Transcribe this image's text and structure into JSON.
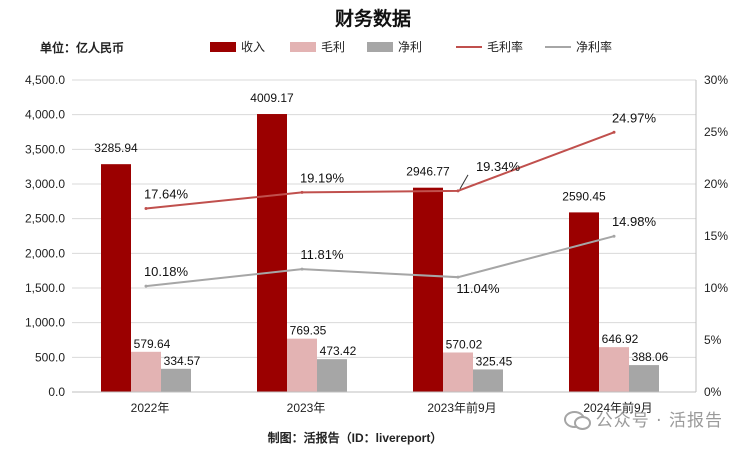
{
  "chart_data": {
    "type": "bar",
    "title": "财务数据",
    "unit_label": "单位：亿人民币",
    "footer": "制图：活报告（ID：livereport）",
    "categories": [
      "2022年",
      "2023年",
      "2023年前9月",
      "2024年前9月"
    ],
    "left_axis": {
      "ylim": [
        0,
        4500
      ],
      "ticks": [
        "0.0",
        "500.0",
        "1,000.0",
        "1,500.0",
        "2,000.0",
        "2,500.0",
        "3,000.0",
        "3,500.0",
        "4,000.0",
        "4,500.0"
      ]
    },
    "right_axis": {
      "ylim": [
        0,
        30
      ],
      "ticks": [
        "0%",
        "5%",
        "10%",
        "15%",
        "20%",
        "25%",
        "30%"
      ]
    },
    "grid": true,
    "legend_position": "top",
    "bar_series": [
      {
        "name": "收入",
        "color": "#9b0000",
        "values": [
          3285.94,
          4009.17,
          2946.77,
          2590.45
        ],
        "labels": [
          "3285.94",
          "4009.17",
          "2946.77",
          "2590.45"
        ]
      },
      {
        "name": "毛利",
        "color": "#e3b3b3",
        "values": [
          579.64,
          769.35,
          570.02,
          646.92
        ],
        "labels": [
          "579.64",
          "769.35",
          "570.02",
          "646.92"
        ]
      },
      {
        "name": "净利",
        "color": "#a6a6a6",
        "values": [
          334.57,
          473.42,
          325.45,
          388.06
        ],
        "labels": [
          "334.57",
          "473.42",
          "325.45",
          "388.06"
        ]
      }
    ],
    "line_series": [
      {
        "name": "毛利率",
        "color": "#c0504d",
        "values": [
          17.64,
          19.19,
          19.34,
          24.97
        ],
        "labels": [
          "17.64%",
          "19.19%",
          "19.34%",
          "24.97%"
        ]
      },
      {
        "name": "净利率",
        "color": "#a6a6a6",
        "values": [
          10.18,
          11.81,
          11.04,
          14.98
        ],
        "labels": [
          "10.18%",
          "11.81%",
          "11.04%",
          "14.98%"
        ]
      }
    ]
  },
  "watermark": {
    "text": "公众号 · 活报告",
    "icon": "wechat-icon"
  }
}
